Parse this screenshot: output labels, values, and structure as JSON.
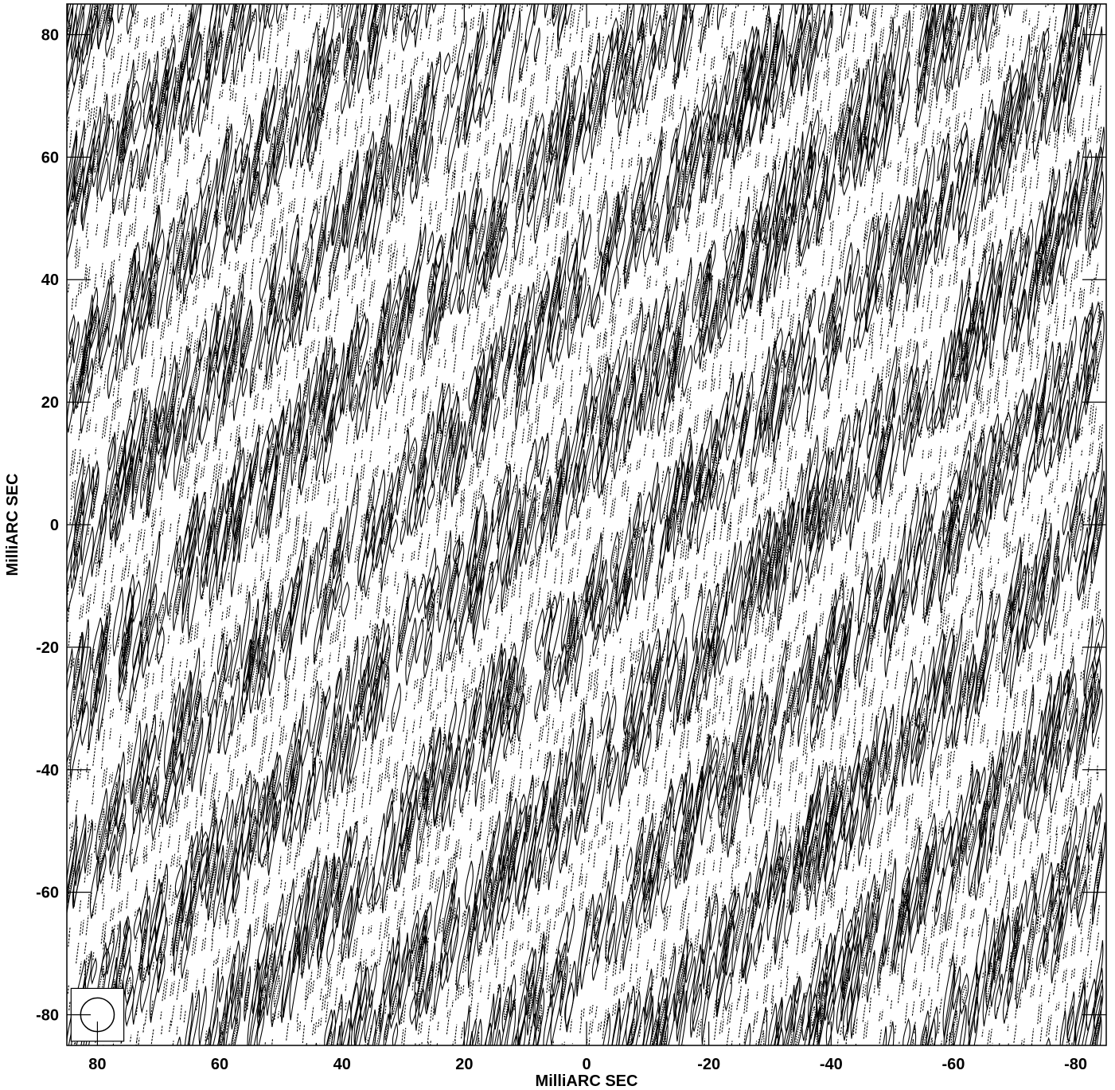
{
  "chart_data": {
    "type": "contour",
    "title": "",
    "xlabel": "MilliARC SEC",
    "ylabel": "MilliARC SEC",
    "xlim": [
      85,
      -85
    ],
    "ylim": [
      -85,
      85
    ],
    "xticks": [
      80,
      60,
      40,
      20,
      0,
      -20,
      -40,
      -60,
      -80
    ],
    "yticks": [
      80,
      60,
      40,
      20,
      0,
      -20,
      -40,
      -60,
      -80
    ],
    "xtick_labels": [
      "80",
      "60",
      "40",
      "20",
      "0",
      "-20",
      "-40",
      "-60",
      "-80"
    ],
    "ytick_labels": [
      "80",
      "60",
      "40",
      "20",
      "0",
      "-20",
      "-40",
      "-60",
      "-80"
    ],
    "beam": {
      "center": [
        80,
        -80
      ],
      "diameter_mas": 5.5
    },
    "contour_style": {
      "positive": "solid",
      "negative": "dashed"
    },
    "color": "#000000"
  }
}
